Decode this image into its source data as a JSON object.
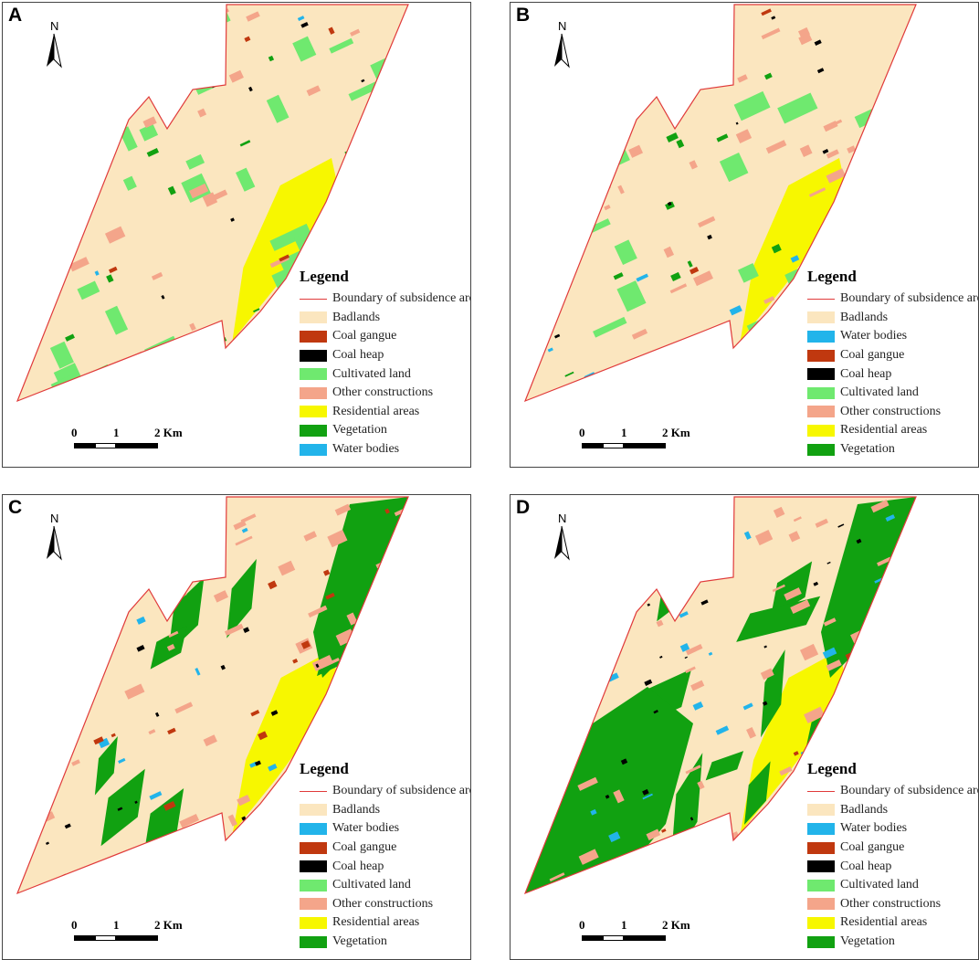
{
  "colors": {
    "boundary": "#e03a3a",
    "badlands": "#fbe6bf",
    "water": "#22b4ea",
    "gangue": "#c0380f",
    "heap": "#000000",
    "cultivated": "#6fe96f",
    "other": "#f4a58a",
    "residential": "#f7f700",
    "vegetation": "#11a111"
  },
  "panels": [
    {
      "letter": "A",
      "north": "N",
      "legend": {
        "title": "Legend",
        "items": [
          {
            "label": "Boundary of subsidence area",
            "key": "boundary"
          },
          {
            "label": "Badlands",
            "key": "badlands"
          },
          {
            "label": "Coal gangue",
            "key": "gangue"
          },
          {
            "label": "Coal heap",
            "key": "heap"
          },
          {
            "label": "Cultivated land",
            "key": "cultivated"
          },
          {
            "label": "Other constructions",
            "key": "other"
          },
          {
            "label": "Residential areas",
            "key": "residential"
          },
          {
            "label": "Vegetation",
            "key": "vegetation"
          },
          {
            "label": "Water bodies",
            "key": "water"
          }
        ]
      },
      "scale": {
        "t0": "0",
        "t1": "1",
        "t2": "2 Km"
      },
      "cover": {
        "vegetation": 0.04,
        "cultivated": 0.15,
        "other": 0.08,
        "residential": 0.07,
        "water": 0.005,
        "heap": 0.003,
        "gangue": 0.005
      }
    },
    {
      "letter": "B",
      "north": "N",
      "legend": {
        "title": "Legend",
        "items": [
          {
            "label": "Boundary of subsidence area",
            "key": "boundary"
          },
          {
            "label": "Badlands",
            "key": "badlands"
          },
          {
            "label": "Water bodies",
            "key": "water"
          },
          {
            "label": "Coal gangue",
            "key": "gangue"
          },
          {
            "label": "Coal heap",
            "key": "heap"
          },
          {
            "label": "Cultivated land",
            "key": "cultivated"
          },
          {
            "label": "Other constructions",
            "key": "other"
          },
          {
            "label": "Residential areas",
            "key": "residential"
          },
          {
            "label": "Vegetation",
            "key": "vegetation"
          }
        ]
      },
      "scale": {
        "t0": "0",
        "t1": "1",
        "t2": "2 Km"
      },
      "cover": {
        "vegetation": 0.03,
        "cultivated": 0.09,
        "other": 0.09,
        "residential": 0.09,
        "water": 0.01,
        "heap": 0.006,
        "gangue": 0.008
      }
    },
    {
      "letter": "C",
      "north": "N",
      "legend": {
        "title": "Legend",
        "items": [
          {
            "label": "Boundary of subsidence area",
            "key": "boundary"
          },
          {
            "label": "Badlands",
            "key": "badlands"
          },
          {
            "label": "Water bodies",
            "key": "water"
          },
          {
            "label": "Coal gangue",
            "key": "gangue"
          },
          {
            "label": "Coal heap",
            "key": "heap"
          },
          {
            "label": "Cultivated land",
            "key": "cultivated"
          },
          {
            "label": "Other constructions",
            "key": "other"
          },
          {
            "label": "Residential areas",
            "key": "residential"
          },
          {
            "label": "Vegetation",
            "key": "vegetation"
          }
        ]
      },
      "scale": {
        "t0": "0",
        "t1": "1",
        "t2": "2 Km"
      },
      "cover": {
        "vegetation": 0.3,
        "cultivated": 0.0,
        "other": 0.1,
        "residential": 0.1,
        "water": 0.02,
        "heap": 0.01,
        "gangue": 0.01
      }
    },
    {
      "letter": "D",
      "north": "N",
      "legend": {
        "title": "Legend",
        "items": [
          {
            "label": "Boundary of subsidence area",
            "key": "boundary"
          },
          {
            "label": "Badlands",
            "key": "badlands"
          },
          {
            "label": "Water bodies",
            "key": "water"
          },
          {
            "label": "Coal gangue",
            "key": "gangue"
          },
          {
            "label": "Coal heap",
            "key": "heap"
          },
          {
            "label": "Cultivated land",
            "key": "cultivated"
          },
          {
            "label": "Other constructions",
            "key": "other"
          },
          {
            "label": "Residential areas",
            "key": "residential"
          },
          {
            "label": "Vegetation",
            "key": "vegetation"
          }
        ]
      },
      "scale": {
        "t0": "0",
        "t1": "1",
        "t2": "2 Km"
      },
      "cover": {
        "vegetation": 0.5,
        "cultivated": 0.0,
        "other": 0.12,
        "residential": 0.1,
        "water": 0.03,
        "heap": 0.01,
        "gangue": 0.005
      }
    }
  ]
}
